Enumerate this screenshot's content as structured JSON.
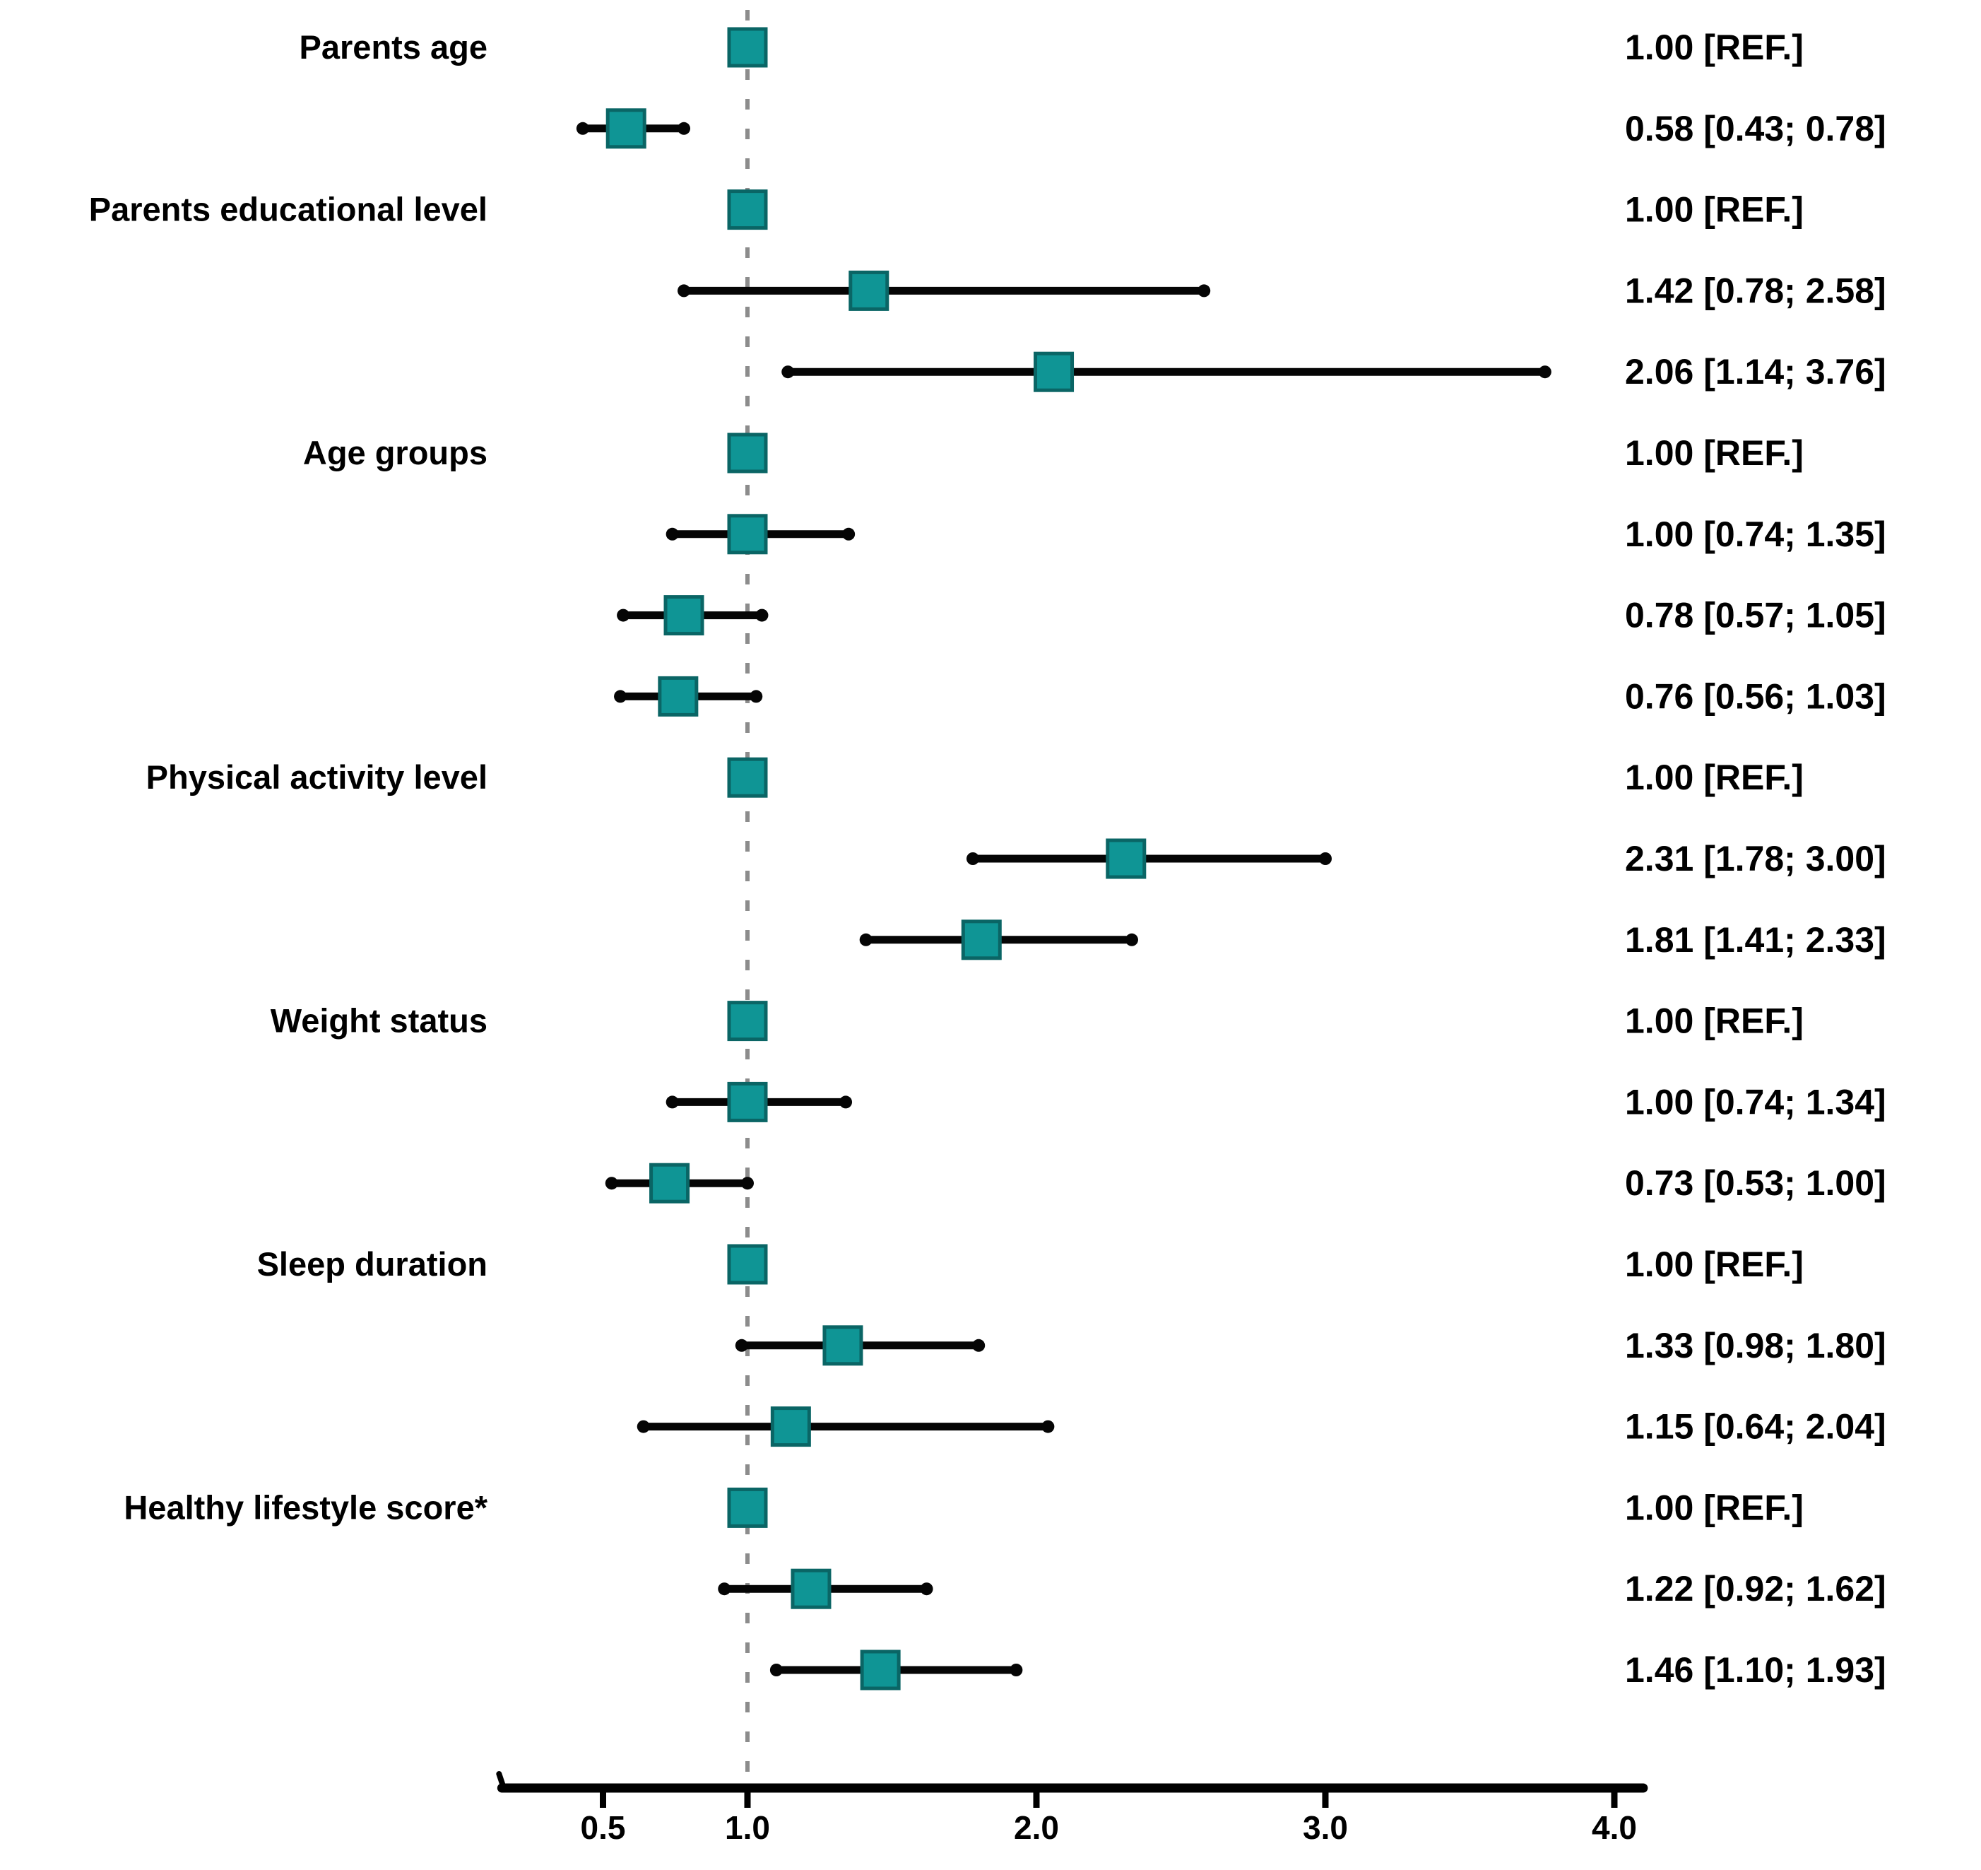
{
  "chart_data": {
    "type": "forest",
    "title": "",
    "xlabel": "",
    "ylabel": "",
    "x_axis": {
      "scale": "linear",
      "range": [
        0.15,
        4.1
      ],
      "ticks": [
        0.5,
        1.0,
        2.0,
        3.0,
        4.0
      ],
      "tick_labels": [
        "0.5",
        "1.0",
        "2.0",
        "3.0",
        "4.0"
      ],
      "reference_value": 1.0
    },
    "legend": null,
    "grid": false,
    "rows": [
      {
        "group": "Parents age",
        "est": 1.0,
        "lo": null,
        "hi": null,
        "ref": true,
        "label": "1.00 [REF.]"
      },
      {
        "group": null,
        "est": 0.58,
        "lo": 0.43,
        "hi": 0.78,
        "ref": false,
        "label": "0.58 [0.43; 0.78]"
      },
      {
        "group": "Parents educational level",
        "est": 1.0,
        "lo": null,
        "hi": null,
        "ref": true,
        "label": "1.00 [REF.]"
      },
      {
        "group": null,
        "est": 1.42,
        "lo": 0.78,
        "hi": 2.58,
        "ref": false,
        "label": "1.42 [0.78; 2.58]"
      },
      {
        "group": null,
        "est": 2.06,
        "lo": 1.14,
        "hi": 3.76,
        "ref": false,
        "label": "2.06 [1.14; 3.76]"
      },
      {
        "group": "Age groups",
        "est": 1.0,
        "lo": null,
        "hi": null,
        "ref": true,
        "label": "1.00 [REF.]"
      },
      {
        "group": null,
        "est": 1.0,
        "lo": 0.74,
        "hi": 1.35,
        "ref": false,
        "label": "1.00 [0.74; 1.35]"
      },
      {
        "group": null,
        "est": 0.78,
        "lo": 0.57,
        "hi": 1.05,
        "ref": false,
        "label": "0.78 [0.57; 1.05]"
      },
      {
        "group": null,
        "est": 0.76,
        "lo": 0.56,
        "hi": 1.03,
        "ref": false,
        "label": "0.76 [0.56; 1.03]"
      },
      {
        "group": "Physical activity level",
        "est": 1.0,
        "lo": null,
        "hi": null,
        "ref": true,
        "label": "1.00 [REF.]"
      },
      {
        "group": null,
        "est": 2.31,
        "lo": 1.78,
        "hi": 3.0,
        "ref": false,
        "label": "2.31 [1.78; 3.00]"
      },
      {
        "group": null,
        "est": 1.81,
        "lo": 1.41,
        "hi": 2.33,
        "ref": false,
        "label": "1.81 [1.41; 2.33]"
      },
      {
        "group": "Weight status",
        "est": 1.0,
        "lo": null,
        "hi": null,
        "ref": true,
        "label": "1.00 [REF.]"
      },
      {
        "group": null,
        "est": 1.0,
        "lo": 0.74,
        "hi": 1.34,
        "ref": false,
        "label": "1.00 [0.74; 1.34]"
      },
      {
        "group": null,
        "est": 0.73,
        "lo": 0.53,
        "hi": 1.0,
        "ref": false,
        "label": "0.73 [0.53; 1.00]"
      },
      {
        "group": "Sleep duration",
        "est": 1.0,
        "lo": null,
        "hi": null,
        "ref": true,
        "label": "1.00 [REF.]"
      },
      {
        "group": null,
        "est": 1.33,
        "lo": 0.98,
        "hi": 1.8,
        "ref": false,
        "label": "1.33 [0.98; 1.80]"
      },
      {
        "group": null,
        "est": 1.15,
        "lo": 0.64,
        "hi": 2.04,
        "ref": false,
        "label": "1.15 [0.64; 2.04]"
      },
      {
        "group": "Healthy lifestyle score*",
        "est": 1.0,
        "lo": null,
        "hi": null,
        "ref": true,
        "label": "1.00 [REF.]"
      },
      {
        "group": null,
        "est": 1.22,
        "lo": 0.92,
        "hi": 1.62,
        "ref": false,
        "label": "1.22 [0.92; 1.62]"
      },
      {
        "group": null,
        "est": 1.46,
        "lo": 1.1,
        "hi": 1.93,
        "ref": false,
        "label": "1.46 [1.10; 1.93]"
      }
    ],
    "colors": {
      "marker_fill": "#0f9595",
      "marker_border": "#0a6565",
      "error_bar": "#050505",
      "reference_line": "#8c8c8c",
      "axis": "#000000",
      "text": "#000000"
    }
  }
}
